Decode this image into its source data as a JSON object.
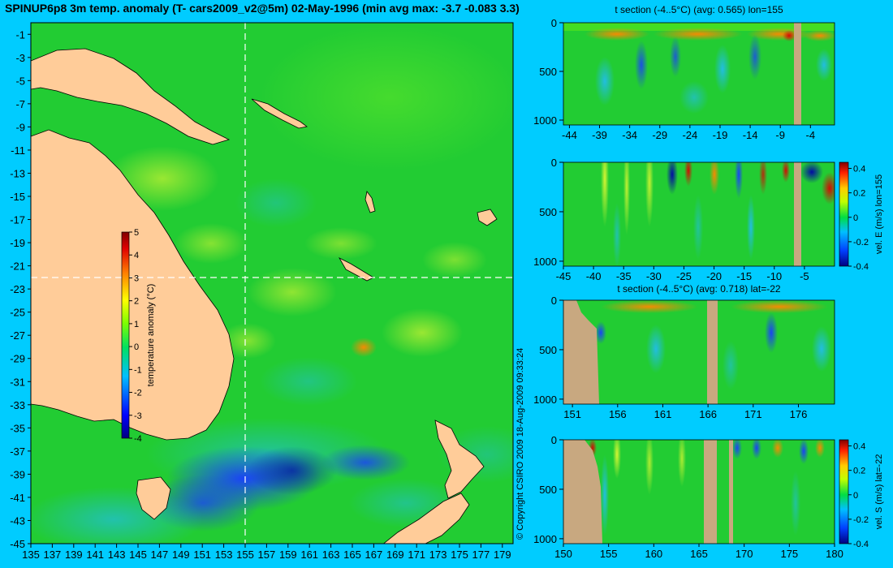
{
  "title": "SPINUP6p8 3m temp. anomaly (T- cars2009_v2@5m) 02-May-1996 (min avg max: -3.7 -0.083 3.3)",
  "copyright": "© Copyright CSIRO 2009   18-Aug-2009 09:33:24",
  "colors": {
    "background": "#00ccff",
    "land": "#ffcc99",
    "section_land": "#c8a880",
    "ocean_mid": "#22cc33"
  },
  "chart_data": [
    {
      "id": "map",
      "type": "heatmap",
      "title": "SPINUP6p8 3m temp. anomaly (T- cars2009_v2@5m) 02-May-1996 (min avg max: -3.7 -0.083 3.3)",
      "xlim": [
        135,
        180
      ],
      "ylim": [
        -45,
        0
      ],
      "xticks": [
        "135",
        "137",
        "139",
        "141",
        "143",
        "145",
        "147",
        "149",
        "151",
        "153",
        "155",
        "157",
        "159",
        "161",
        "163",
        "165",
        "167",
        "169",
        "171",
        "173",
        "175",
        "177",
        "179"
      ],
      "yticks": [
        "-1",
        "-3",
        "-5",
        "-7",
        "-9",
        "-11",
        "-13",
        "-15",
        "-17",
        "-19",
        "-21",
        "-23",
        "-25",
        "-27",
        "-29",
        "-31",
        "-33",
        "-35",
        "-37",
        "-39",
        "-41",
        "-43",
        "-45"
      ],
      "section_lon": 155,
      "section_lat": -22,
      "colorbar": {
        "label": "temperature anomaly (°C)",
        "range": [
          -4,
          5
        ],
        "ticks": [
          "5",
          "4",
          "3",
          "2",
          "1",
          "0",
          "-1",
          "-2",
          "-3",
          "-4"
        ]
      }
    },
    {
      "id": "t-section-lon",
      "type": "heatmap",
      "title": "t section (-4..5°C) (avg: 0.565) lon=155",
      "xlim": [
        -45,
        0
      ],
      "ylim": [
        1050,
        0
      ],
      "xticks": [
        "-44",
        "-39",
        "-34",
        "-29",
        "-24",
        "-19",
        "-14",
        "-9",
        "-4"
      ],
      "yticks": [
        "0",
        "500",
        "1000"
      ]
    },
    {
      "id": "vel-e-section",
      "type": "heatmap",
      "title": "",
      "xlim": [
        -45,
        0
      ],
      "ylim": [
        1050,
        0
      ],
      "xticks": [
        "-45",
        "-40",
        "-35",
        "-30",
        "-25",
        "-20",
        "-15",
        "-10",
        "-5"
      ],
      "yticks": [
        "0",
        "500",
        "1000"
      ],
      "colorbar": {
        "label": "vel. E (m/s) lon=155",
        "range": [
          -0.4,
          0.45
        ],
        "ticks": [
          "0.4",
          "0.2",
          "0",
          "-0.2",
          "-0.4"
        ]
      }
    },
    {
      "id": "t-section-lat",
      "type": "heatmap",
      "title": "t section (-4..5°C) (avg: 0.718) lat=-22",
      "xlim": [
        150,
        180
      ],
      "ylim": [
        1050,
        0
      ],
      "xticks": [
        "151",
        "156",
        "161",
        "166",
        "171",
        "176"
      ],
      "yticks": [
        "0",
        "500",
        "1000"
      ]
    },
    {
      "id": "vel-s-section",
      "type": "heatmap",
      "title": "",
      "xlim": [
        150,
        180
      ],
      "ylim": [
        1050,
        0
      ],
      "xticks": [
        "150",
        "155",
        "160",
        "165",
        "170",
        "175",
        "180"
      ],
      "yticks": [
        "0",
        "500",
        "1000"
      ],
      "colorbar": {
        "label": "vel. S (m/s) lat=-22",
        "range": [
          -0.4,
          0.45
        ],
        "ticks": [
          "0.4",
          "0.2",
          "0",
          "-0.2",
          "-0.4"
        ]
      }
    }
  ]
}
